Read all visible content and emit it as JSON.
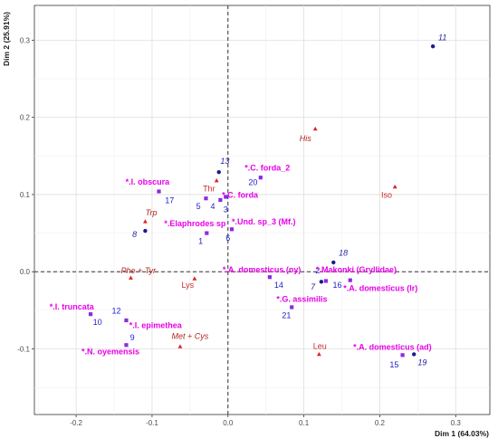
{
  "chart_data": {
    "type": "scatter",
    "xlabel": "Dim 1 (64.03%)",
    "ylabel": "Dim 2 (25.91%)",
    "xlim": [
      -0.255,
      0.345
    ],
    "ylim": [
      -0.185,
      0.345
    ],
    "xticks": [
      -0.2,
      -0.1,
      0.0,
      0.1,
      0.2,
      0.3
    ],
    "yticks": [
      -0.1,
      0.0,
      0.1,
      0.2,
      0.3
    ],
    "xtick_labels": [
      "-0.2",
      "-0.1",
      "0.0",
      "0.1",
      "0.2",
      "0.3"
    ],
    "ytick_labels": [
      "-0.1",
      "0.0",
      "0.1",
      "0.2",
      "0.3"
    ],
    "grid": true,
    "reference_lines": {
      "x": 0,
      "y": 0,
      "style": "dashed"
    },
    "colors": {
      "dark_points": "#1c1c8c",
      "purple_points": "#8a2be2",
      "blue_labels": "#2222cc",
      "species_labels": "#e800e8",
      "variables": "#dd2222",
      "variable_labels": "#b22222"
    },
    "series": [
      {
        "marker": "circle",
        "color": "#1c1c8c",
        "points": [
          {
            "label": "11",
            "x": 0.27,
            "y": 0.292
          },
          {
            "label": "13",
            "x": -0.012,
            "y": 0.129
          },
          {
            "label": "8",
            "x": -0.109,
            "y": 0.053
          },
          {
            "label": "18",
            "x": 0.139,
            "y": 0.012
          },
          {
            "label": "7",
            "x": 0.123,
            "y": -0.013
          },
          {
            "label": "19",
            "x": 0.245,
            "y": -0.107
          }
        ]
      },
      {
        "marker": "square",
        "color": "#8a2be2",
        "points": [
          {
            "label": "20",
            "x": 0.043,
            "y": 0.122
          },
          {
            "label": "17",
            "x": -0.091,
            "y": 0.104
          },
          {
            "label": "5",
            "x": -0.029,
            "y": 0.095
          },
          {
            "label": "4",
            "x": -0.01,
            "y": 0.093
          },
          {
            "label": "3",
            "x": -0.003,
            "y": 0.097
          },
          {
            "label": "1",
            "x": -0.028,
            "y": 0.05
          },
          {
            "label": "6",
            "x": 0.005,
            "y": 0.055
          },
          {
            "label": "14",
            "x": 0.055,
            "y": -0.007
          },
          {
            "label": "2",
            "x": 0.129,
            "y": -0.012
          },
          {
            "label": "16",
            "x": 0.161,
            "y": -0.011
          },
          {
            "label": "21",
            "x": 0.084,
            "y": -0.046
          },
          {
            "label": "10",
            "x": -0.181,
            "y": -0.055
          },
          {
            "label": "12",
            "x": -0.134,
            "y": -0.063
          },
          {
            "label": "9",
            "x": -0.134,
            "y": -0.095
          },
          {
            "label": "15",
            "x": 0.23,
            "y": -0.108
          }
        ]
      },
      {
        "marker": "triangle",
        "color": "#dd2222",
        "points": [
          {
            "label": "His",
            "x": 0.115,
            "y": 0.185
          },
          {
            "label": "Iso",
            "x": 0.22,
            "y": 0.11
          },
          {
            "label": "Thr",
            "x": -0.015,
            "y": 0.118
          },
          {
            "label": "Trp",
            "x": -0.109,
            "y": 0.065
          },
          {
            "label": "Phe + Tyr",
            "x": -0.128,
            "y": -0.008
          },
          {
            "label": "Lys",
            "x": -0.044,
            "y": -0.009
          },
          {
            "label": "Met + Cys",
            "x": -0.063,
            "y": -0.097
          },
          {
            "label": "Leu",
            "x": 0.12,
            "y": -0.107
          }
        ]
      }
    ],
    "annotations": [
      {
        "text": "11",
        "x": 0.277,
        "y": 0.3,
        "class": "lbl-obj",
        "anchor": "start"
      },
      {
        "text": "13",
        "x": -0.01,
        "y": 0.14,
        "class": "lbl-obj",
        "anchor": "start"
      },
      {
        "text": "8",
        "x": -0.12,
        "y": 0.045,
        "class": "lbl-obj",
        "anchor": "end"
      },
      {
        "text": "18",
        "x": 0.146,
        "y": 0.021,
        "class": "lbl-obj",
        "anchor": "start"
      },
      {
        "text": "7",
        "x": 0.115,
        "y": -0.023,
        "class": "lbl-obj",
        "anchor": "end"
      },
      {
        "text": "19",
        "x": 0.25,
        "y": -0.121,
        "class": "lbl-obj",
        "anchor": "start"
      },
      {
        "text": "20",
        "x": 0.033,
        "y": 0.112,
        "class": "lbl-pt-blue",
        "anchor": "middle"
      },
      {
        "text": "17",
        "x": -0.083,
        "y": 0.089,
        "class": "lbl-pt-blue",
        "anchor": "start"
      },
      {
        "text": "5",
        "x": -0.039,
        "y": 0.081,
        "class": "lbl-pt-blue",
        "anchor": "middle"
      },
      {
        "text": "4",
        "x": -0.02,
        "y": 0.081,
        "class": "lbl-pt-blue",
        "anchor": "middle"
      },
      {
        "text": "3",
        "x": -0.003,
        "y": 0.077,
        "class": "lbl-pt-blue",
        "anchor": "middle"
      },
      {
        "text": "1",
        "x": -0.036,
        "y": 0.036,
        "class": "lbl-pt-blue",
        "anchor": "middle"
      },
      {
        "text": "6",
        "x": 0.0,
        "y": 0.04,
        "class": "lbl-pt-blue",
        "anchor": "middle"
      },
      {
        "text": "14",
        "x": 0.067,
        "y": -0.021,
        "class": "lbl-pt-blue",
        "anchor": "middle"
      },
      {
        "text": "2",
        "x": 0.118,
        "y": -0.002,
        "class": "lbl-pt-blue",
        "anchor": "middle"
      },
      {
        "text": "16",
        "x": 0.144,
        "y": -0.021,
        "class": "lbl-pt-blue",
        "anchor": "middle"
      },
      {
        "text": "21",
        "x": 0.077,
        "y": -0.06,
        "class": "lbl-pt-blue",
        "anchor": "middle"
      },
      {
        "text": "10",
        "x": -0.172,
        "y": -0.069,
        "class": "lbl-pt-blue",
        "anchor": "middle"
      },
      {
        "text": "12",
        "x": -0.147,
        "y": -0.054,
        "class": "lbl-pt-blue",
        "anchor": "middle"
      },
      {
        "text": "9",
        "x": -0.126,
        "y": -0.089,
        "class": "lbl-pt-blue",
        "anchor": "middle"
      },
      {
        "text": "15",
        "x": 0.219,
        "y": -0.124,
        "class": "lbl-pt-blue",
        "anchor": "middle"
      },
      {
        "text": "*.C. forda_2",
        "x": 0.022,
        "y": 0.131,
        "class": "lbl-sp",
        "anchor": "start"
      },
      {
        "text": "*.I. obscura",
        "x": -0.135,
        "y": 0.113,
        "class": "lbl-sp",
        "anchor": "start"
      },
      {
        "text": "*.C. forda",
        "x": -0.008,
        "y": 0.096,
        "class": "lbl-sp",
        "anchor": "start"
      },
      {
        "text": "*.Elaphrodes sp",
        "x": -0.084,
        "y": 0.059,
        "class": "lbl-sp",
        "anchor": "start"
      },
      {
        "text": "*.Und. sp_3 (Mf.)",
        "x": 0.005,
        "y": 0.061,
        "class": "lbl-sp",
        "anchor": "start"
      },
      {
        "text": "*.A. domesticus (ny)",
        "x": -0.007,
        "y": -0.001,
        "class": "lbl-sp",
        "anchor": "start"
      },
      {
        "text": "*.Makonki (Gryllidae)",
        "x": 0.116,
        "y": -0.001,
        "class": "lbl-sp",
        "anchor": "start"
      },
      {
        "text": "*.A. domesticus (lr)",
        "x": 0.152,
        "y": -0.025,
        "class": "lbl-sp",
        "anchor": "start"
      },
      {
        "text": "*.G. assimilis",
        "x": 0.064,
        "y": -0.039,
        "class": "lbl-sp",
        "anchor": "start"
      },
      {
        "text": "*.I. truncata",
        "x": -0.235,
        "y": -0.049,
        "class": "lbl-sp",
        "anchor": "start"
      },
      {
        "text": "*.I. epimethea",
        "x": -0.13,
        "y": -0.073,
        "class": "lbl-sp",
        "anchor": "start"
      },
      {
        "text": "*.N. oyemensis",
        "x": -0.193,
        "y": -0.107,
        "class": "lbl-sp",
        "anchor": "start"
      },
      {
        "text": "*.A. domesticus (ad)",
        "x": 0.165,
        "y": -0.101,
        "class": "lbl-sp",
        "anchor": "start"
      },
      {
        "text": "His",
        "x": 0.102,
        "y": 0.169,
        "class": "lbl-var",
        "anchor": "middle"
      },
      {
        "text": "Iso",
        "x": 0.209,
        "y": 0.096,
        "class": "lbl-iso",
        "anchor": "middle"
      },
      {
        "text": "Thr",
        "x": -0.025,
        "y": 0.104,
        "class": "lbl-iso",
        "anchor": "middle"
      },
      {
        "text": "Trp",
        "x": -0.101,
        "y": 0.073,
        "class": "lbl-var",
        "anchor": "middle"
      },
      {
        "text": "Phe + Tyr",
        "x": -0.118,
        "y": -0.002,
        "class": "lbl-var",
        "anchor": "middle"
      },
      {
        "text": "Lys",
        "x": -0.053,
        "y": -0.021,
        "class": "lbl-iso",
        "anchor": "middle"
      },
      {
        "text": "Met + Cys",
        "x": -0.05,
        "y": -0.087,
        "class": "lbl-var",
        "anchor": "middle"
      },
      {
        "text": "Leu",
        "x": 0.121,
        "y": -0.1,
        "class": "lbl-iso",
        "anchor": "middle"
      }
    ]
  }
}
